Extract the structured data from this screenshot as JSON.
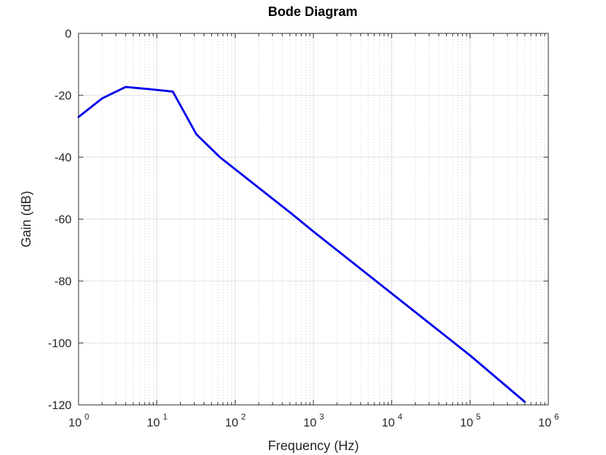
{
  "chart_data": {
    "type": "line",
    "title": "Bode Diagram",
    "xlabel": "Frequency (Hz)",
    "ylabel": "Gain (dB)",
    "xscale": "log",
    "xlim": [
      1,
      1000000
    ],
    "ylim": [
      -120,
      0
    ],
    "grid": true,
    "x_ticks": [
      {
        "base": "10",
        "exp": "0",
        "value": 1
      },
      {
        "base": "10",
        "exp": "1",
        "value": 10
      },
      {
        "base": "10",
        "exp": "2",
        "value": 100
      },
      {
        "base": "10",
        "exp": "3",
        "value": 1000
      },
      {
        "base": "10",
        "exp": "4",
        "value": 10000
      },
      {
        "base": "10",
        "exp": "5",
        "value": 100000
      },
      {
        "base": "10",
        "exp": "6",
        "value": 1000000
      }
    ],
    "y_ticks": [
      "0",
      "-20",
      "-40",
      "-60",
      "-80",
      "-100",
      "-120"
    ],
    "series": [
      {
        "color": "#0000ee",
        "x": [
          1,
          2,
          4,
          8,
          16,
          32,
          64,
          128,
          256,
          512,
          1000,
          10000,
          100000,
          500000
        ],
        "y": [
          -27,
          -21,
          -17.3,
          -18,
          -18.8,
          -32.6,
          -40,
          -46,
          -52,
          -58,
          -64,
          -84,
          -104,
          -119
        ]
      }
    ]
  }
}
